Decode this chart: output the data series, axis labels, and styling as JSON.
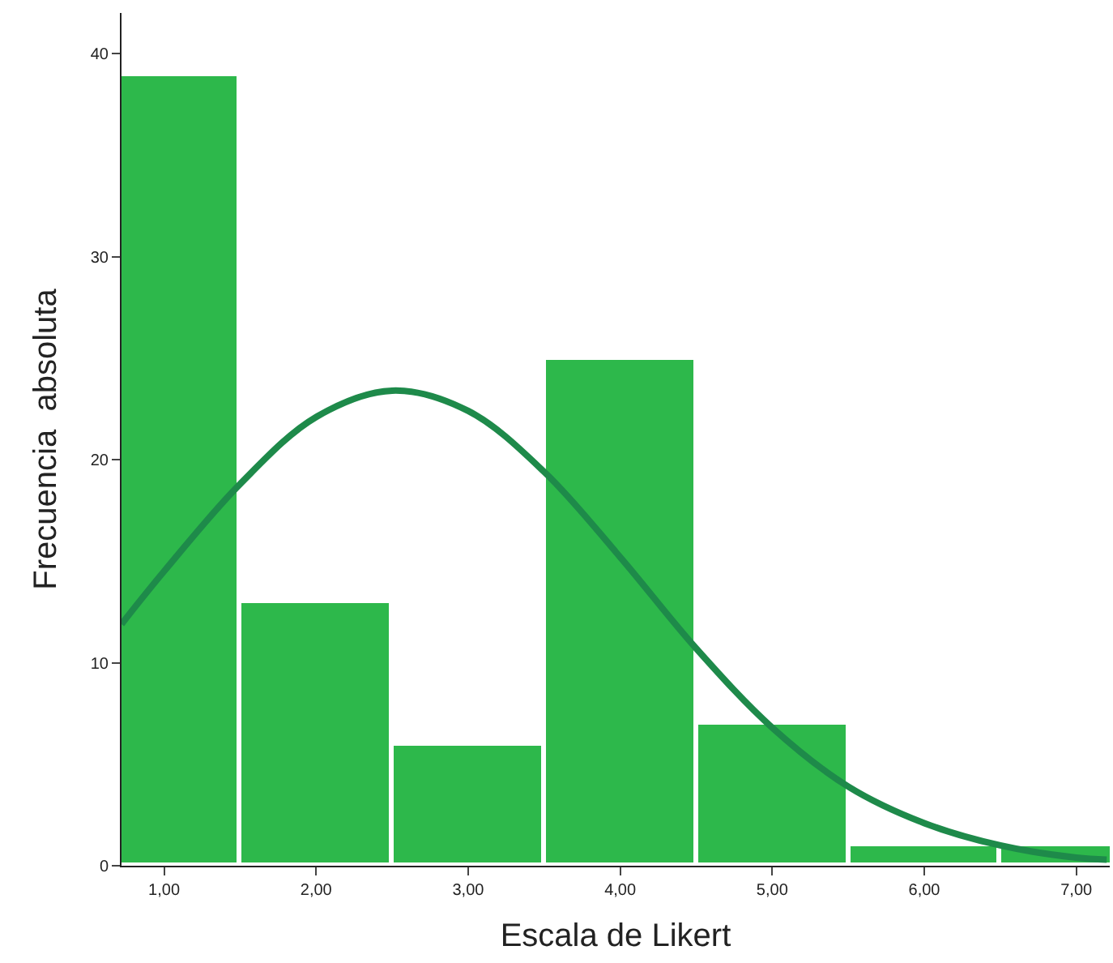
{
  "chart_data": {
    "type": "histogram",
    "xlabel": "Escala de Likert",
    "ylabel": "Frecuencia  absoluta",
    "bins": [
      0.5,
      1.5,
      2.5,
      3.5,
      4.5,
      5.5,
      6.5,
      7.5
    ],
    "values": [
      39,
      13,
      6,
      25,
      7,
      1,
      1
    ],
    "color": "#2db84b",
    "xlim": [
      0.72,
      7.22
    ],
    "ylim": [
      0,
      42
    ],
    "xticks": [
      {
        "value": 1,
        "label": "1,00"
      },
      {
        "value": 2,
        "label": "2,00"
      },
      {
        "value": 3,
        "label": "3,00"
      },
      {
        "value": 4,
        "label": "4,00"
      },
      {
        "value": 5,
        "label": "5,00"
      },
      {
        "value": 6,
        "label": "6,00"
      },
      {
        "value": 7,
        "label": "7,00"
      }
    ],
    "yticks": [
      0,
      10,
      20,
      30,
      40
    ],
    "series": [
      {
        "type": "line",
        "color": "#1e8a4a",
        "x": [
          0.72,
          1,
          1.5,
          2,
          2.5,
          3,
          3.5,
          4,
          4.5,
          5,
          5.5,
          6,
          6.5,
          7,
          7.2
        ],
        "values": [
          11.9,
          14.5,
          18.8,
          22.1,
          23.4,
          22.4,
          19.4,
          15.2,
          10.7,
          6.8,
          3.9,
          2.1,
          1.0,
          0.4,
          0.3
        ]
      }
    ]
  }
}
